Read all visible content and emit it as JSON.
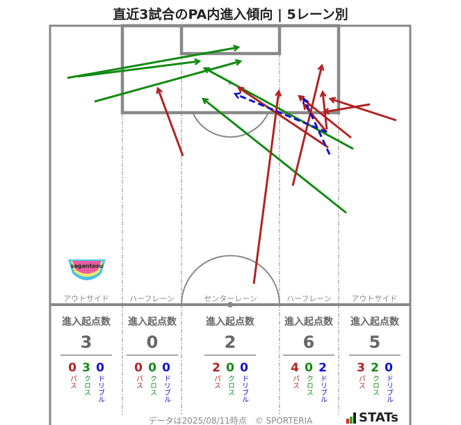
{
  "title": "直近3試合のPA内進入傾向 | 5レーン別",
  "lanes": [
    {
      "label": "アウトサイド",
      "heading": "進入起点数",
      "total": "3",
      "pass": "0",
      "cross": "3",
      "dribble": "0"
    },
    {
      "label": "ハーフレーン",
      "heading": "進入起点数",
      "total": "0",
      "pass": "0",
      "cross": "0",
      "dribble": "0"
    },
    {
      "label": "センターレーン",
      "heading": "進入起点数",
      "total": "2",
      "pass": "2",
      "cross": "0",
      "dribble": "0"
    },
    {
      "label": "ハーフレーン",
      "heading": "進入起点数",
      "total": "6",
      "pass": "4",
      "cross": "0",
      "dribble": "2"
    },
    {
      "label": "アウトサイド",
      "heading": "進入起点数",
      "total": "5",
      "pass": "3",
      "cross": "2",
      "dribble": "0"
    }
  ],
  "legend": {
    "pass": "パス",
    "cross": "クロス",
    "dribble": "ドリブル"
  },
  "colors": {
    "pass": "#b22222",
    "cross": "#128a12",
    "dribble": "#1010cc",
    "pitch": "#888888"
  },
  "team_logo_text": "sagantosu",
  "footer": "データは2025/08/11時点　© SPORTERIA",
  "brand": "STATs"
}
